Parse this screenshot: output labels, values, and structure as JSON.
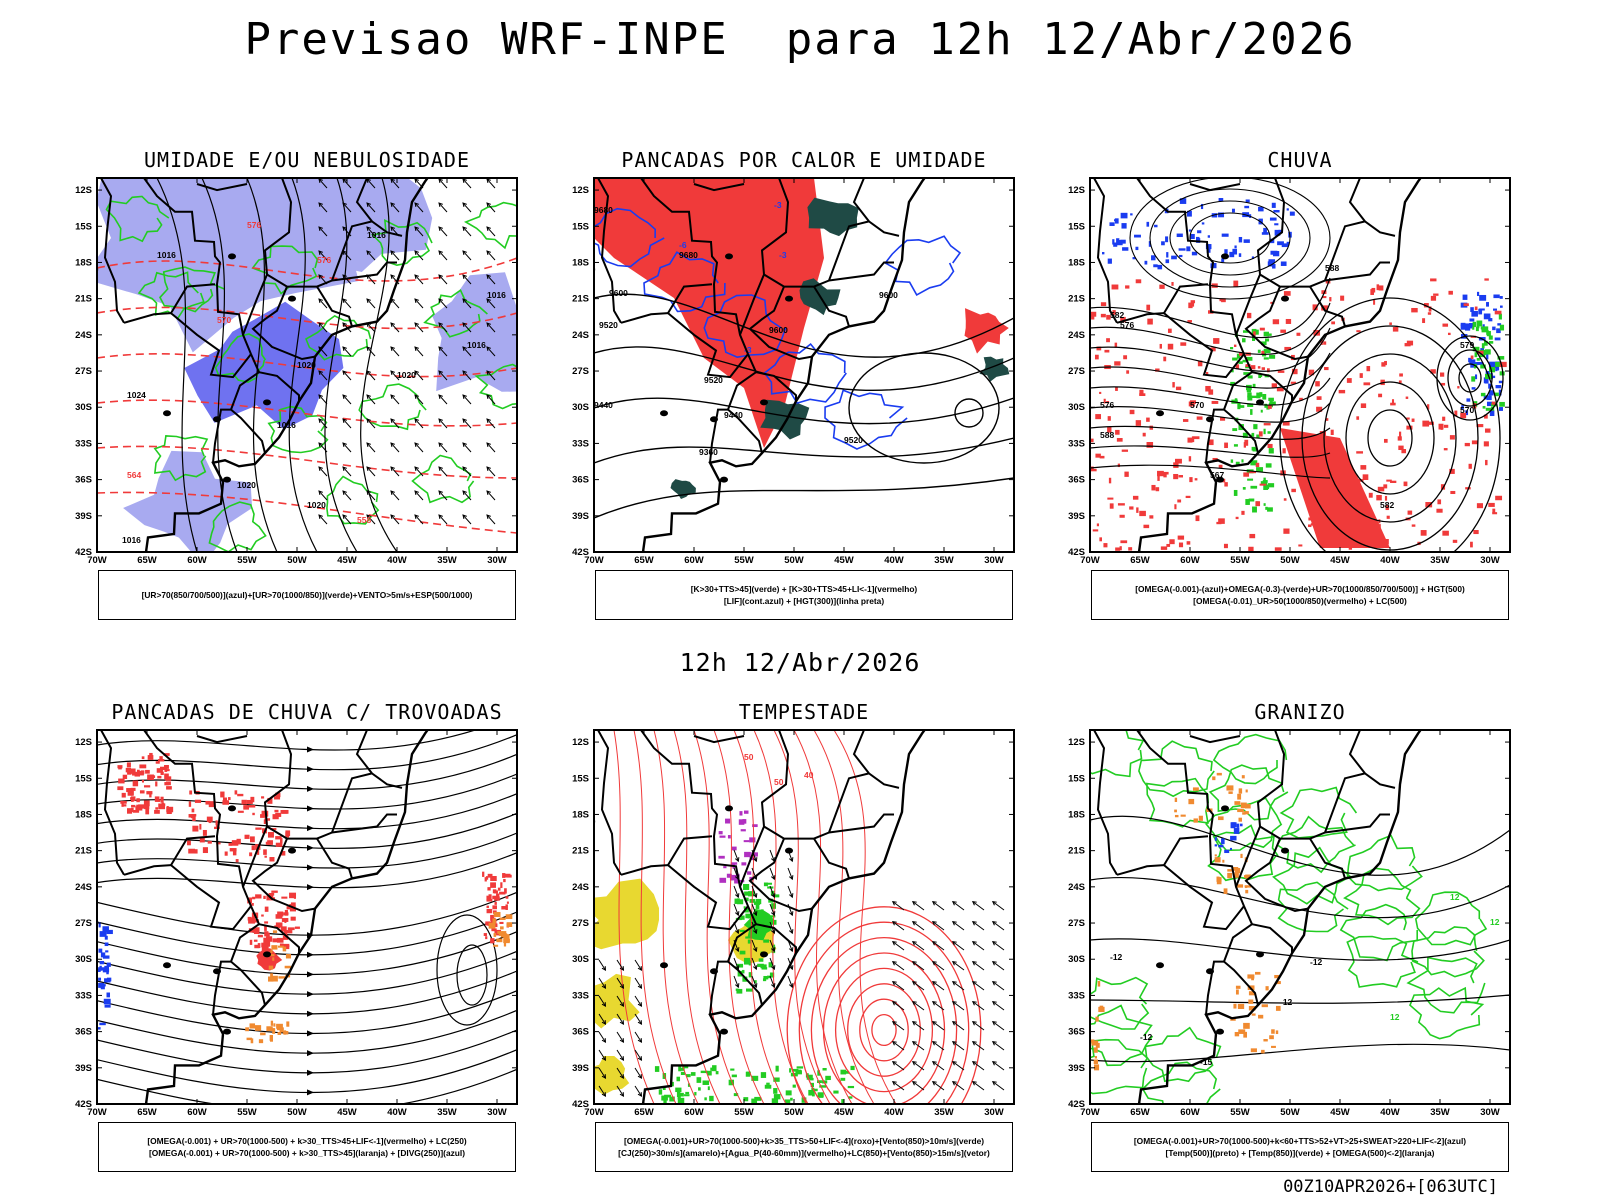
{
  "header": {
    "title": "Previsao WRF-INPE  para 12h 12/Abr/2026",
    "subtitle": "12h 12/Abr/2026",
    "footer": "00Z10APR2026+[063UTC]"
  },
  "axes": {
    "lat_labels": [
      "12S",
      "15S",
      "18S",
      "21S",
      "24S",
      "27S",
      "30S",
      "33S",
      "36S",
      "39S",
      "42S"
    ],
    "lon_labels": [
      "70W",
      "65W",
      "60W",
      "55W",
      "50W",
      "45W",
      "40W",
      "35W",
      "30W"
    ]
  },
  "colors": {
    "blue_light": "#a8aaf0",
    "blue_mid": "#6f72f0",
    "blue": "#1a3cf0",
    "green": "#22cc22",
    "red": "#f03a3a",
    "dark_teal": "#1f4a45",
    "orange": "#f08a30",
    "yellow": "#e8d830",
    "purple": "#b030c0"
  },
  "panels": [
    {
      "title": "UMIDADE E/OU NEBULOSIDADE",
      "legend": [
        "[UR>70(850/700/500)](azul)+[UR>70(1000/850)](verde)+VENTO>5m/s+ESP(500/1000)"
      ],
      "labels": [
        "1016",
        "1016",
        "1020",
        "1020",
        "1024",
        "1020",
        "1016",
        "1016",
        "1016",
        "1020",
        "1016",
        "576",
        "576",
        "570",
        "564",
        "558",
        "558"
      ]
    },
    {
      "title": "PANCADAS POR CALOR E UMIDADE",
      "legend": [
        "[K>30+TTS>45](verde) + [K>30+TTS>45+LI<-1](vermelho)",
        "[LIF](cont.azul) + [HGT(300)](linha preta)"
      ],
      "labels": [
        "9680",
        "9680",
        "9600",
        "9520",
        "9600",
        "9520",
        "9440",
        "9440",
        "9360",
        "9520",
        "9600",
        "-3",
        "-6",
        "-3",
        "-3"
      ]
    },
    {
      "title": "CHUVA",
      "legend": [
        "[OMEGA(-0.001)-(azul)+OMEGA(-0.3)-(verde)+UR>70(1000/850/700/500)] + HGT(500)",
        "[OMEGA(-0.01)_UR>50(1000/850)(vermelho) + LC(500)"
      ],
      "labels": [
        "588",
        "582",
        "576",
        "570",
        "567",
        "582",
        "576",
        "588",
        "579",
        "570"
      ]
    },
    {
      "title": "PANCADAS DE CHUVA C/ TROVOADAS",
      "legend": [
        "[OMEGA(-0.001) + UR>70(1000-500) + k>30_TTS>45+LIF<-1](vermelho) + LC(250)",
        "[OMEGA(-0.001) + UR>70(1000-500) + k>30_TTS>45](laranja) + [DIVG(250)](azul)"
      ],
      "labels": []
    },
    {
      "title": "TEMPESTADE",
      "legend": [
        "[OMEGA(-0.001)+UR>70(1000-500)+k>35_TTS>50+LIF<-4](roxo)+[Vento(850)>10m/s](verde)",
        "[CJ(250)>30m/s](amarelo)+[Agua_P(40-60mm)](vermelho)+LC(850)+[Vento(850)>15m/s](vetor)"
      ],
      "labels": [
        "50",
        "50",
        "40"
      ]
    },
    {
      "title": "GRANIZO",
      "legend": [
        "[OMEGA(-0.001)+UR>70(1000-500)+k<60+TTS>52+VT>25+SWEAT>220+LIF<-2](azul)",
        "[Temp(500)](preto) + [Temp(850)](verde) + [OMEGA(500)<-2](laranja)"
      ],
      "labels": [
        "-12",
        "-12",
        "-12",
        "-12",
        "-15",
        "12",
        "12",
        "12"
      ]
    }
  ]
}
